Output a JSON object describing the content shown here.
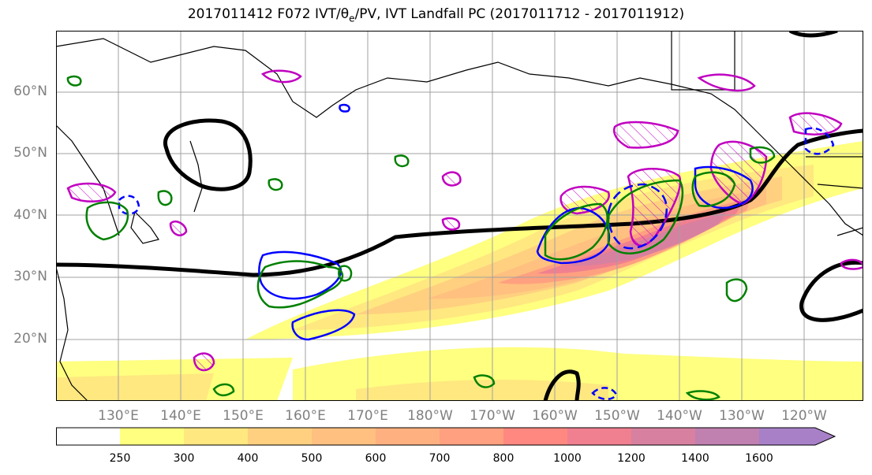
{
  "title": "2017011412 F072 IVT/θe/PV, IVT Landfall PC (2017011712 - 2017011912)",
  "title_parts": {
    "prefix": "2017011412 F072 IVT/θ",
    "sub": "e",
    "suffix": "/PV, IVT Landfall PC (2017011712 - 2017011912)"
  },
  "map": {
    "lat_labels": [
      "60°N",
      "50°N",
      "40°N",
      "30°N",
      "20°N"
    ],
    "lon_labels": [
      "130°E",
      "140°E",
      "150°E",
      "160°E",
      "170°E",
      "180°W",
      "170°W",
      "160°W",
      "150°W",
      "140°W",
      "130°W",
      "120°W"
    ],
    "colors": {
      "pv_contour": "#000000",
      "blue_contour": "#0000ff",
      "green_contour": "#008000",
      "magenta_contour": "#c000c0",
      "coastline": "#000000",
      "grid": "#a0a0a0"
    }
  },
  "colorbar": {
    "ticks": [
      "250",
      "300",
      "400",
      "500",
      "600",
      "700",
      "800",
      "1000",
      "1200",
      "1400",
      "1600"
    ],
    "colors": [
      "#ffffff",
      "#ffff80",
      "#ffe880",
      "#ffd080",
      "#ffc080",
      "#ffb080",
      "#ffa080",
      "#ff8880",
      "#f08090",
      "#d880a0",
      "#c080b0",
      "#a880c8"
    ]
  }
}
